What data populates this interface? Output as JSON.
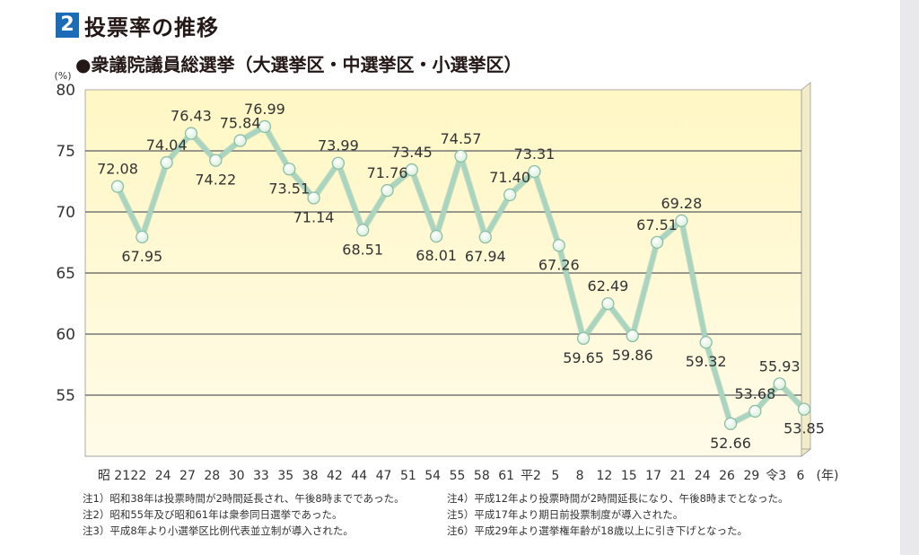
{
  "header": {
    "section_number": "2",
    "title": "投票率の推移",
    "subtitle": "●衆議院議員総選挙（大選挙区・中選挙区・小選挙区）"
  },
  "colors": {
    "section_badge": "#1b6bb7",
    "line": "#a9d5c0",
    "point": "#d8eeda",
    "plot_bg_top": "#fff7c4",
    "plot_bg_bottom": "#fffbe8",
    "grid": "#777777"
  },
  "chart_data": {
    "type": "line",
    "title": "",
    "ylabel": "(%)",
    "xlabel": "(年)",
    "ylim": [
      50,
      80
    ],
    "yticks": [
      "80",
      "75",
      "70",
      "65",
      "60",
      "55"
    ],
    "grid": "horizontal",
    "categories": [
      "昭 21",
      "22",
      "24",
      "27",
      "28",
      "30",
      "33",
      "35",
      "38",
      "42",
      "44",
      "47",
      "51",
      "54",
      "55",
      "58",
      "61",
      "平2",
      "5",
      "8",
      "12",
      "15",
      "17",
      "21",
      "24",
      "26",
      "29",
      "令3",
      "6"
    ],
    "series": [
      {
        "values": [
          72.08,
          67.95,
          74.04,
          76.43,
          74.22,
          75.84,
          76.99,
          73.51,
          71.14,
          73.99,
          68.51,
          71.76,
          73.45,
          68.01,
          74.57,
          67.94,
          71.4,
          73.31,
          67.26,
          59.65,
          62.49,
          59.86,
          67.51,
          69.28,
          59.32,
          52.66,
          53.68,
          55.93,
          53.85
        ],
        "labels": [
          "72.08",
          "67.95",
          "74.04",
          "76.43",
          "74.22",
          "75.84",
          "76.99",
          "73.51",
          "71.14",
          "73.99",
          "68.51",
          "71.76",
          "73.45",
          "68.01",
          "74.57",
          "67.94",
          "71.40",
          "73.31",
          "67.26",
          "59.65",
          "62.49",
          "59.86",
          "67.51",
          "69.28",
          "59.32",
          "52.66",
          "53.68",
          "55.93",
          "53.85"
        ]
      }
    ]
  },
  "notes_left": [
    "注1）昭和38年は投票時間が2時間延長され、午後8時までであった。",
    "注2）昭和55年及び昭和61年は衆参同日選挙であった。",
    "注3）平成8年より小選挙区比例代表並立制が導入された。"
  ],
  "notes_right": [
    "注4）平成12年より投票時間が2時間延長になり、午後8時までとなった。",
    "注5）平成17年より期日前投票制度が導入された。",
    "注6）平成29年より選挙権年齢が18歳以上に引き下げとなった。"
  ]
}
